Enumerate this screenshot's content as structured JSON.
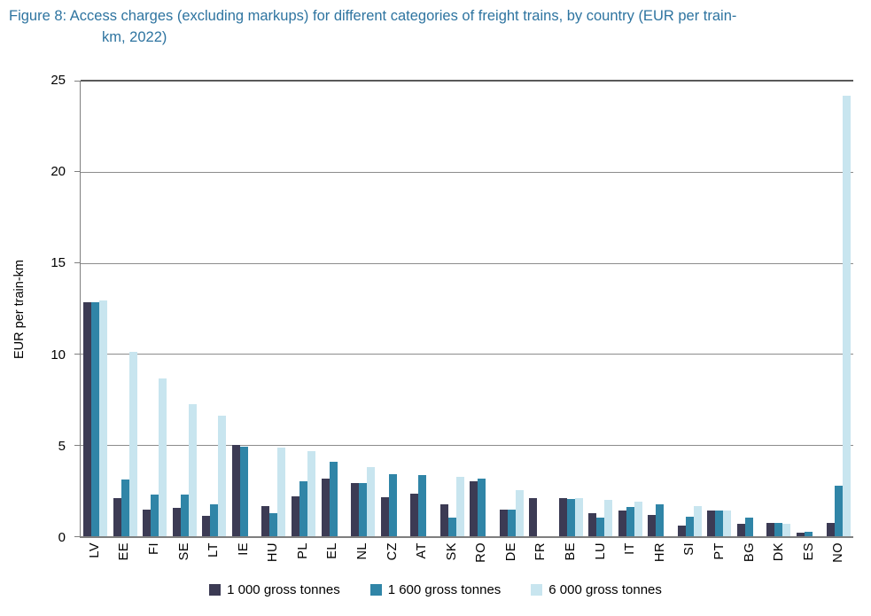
{
  "title": {
    "line1": "Figure 8: Access charges (excluding markups) for different categories of freight trains, by country (EUR per train-",
    "line2": "km, 2022)"
  },
  "colors": {
    "title_text": "#2e74a0",
    "series_1000": "#3c3b54",
    "series_1600": "#3085a7",
    "series_6000": "#c8e5ef",
    "gridline": "#8c8c8c",
    "axis": "#7f7f7f"
  },
  "chart_data": {
    "type": "bar",
    "title": "Figure 8: Access charges (excluding markups) for different categories of freight trains, by country (EUR per train-km, 2022)",
    "xlabel": "",
    "ylabel": "EUR per train-km",
    "ylim": [
      0,
      25
    ],
    "yticks": [
      0,
      5,
      10,
      15,
      20,
      25
    ],
    "grid": true,
    "legend_position": "bottom",
    "categories": [
      "LV",
      "EE",
      "FI",
      "SE",
      "LT",
      "IE",
      "HU",
      "PL",
      "EL",
      "NL",
      "CZ",
      "AT",
      "SK",
      "RO",
      "DE",
      "FR",
      "BE",
      "LU",
      "IT",
      "HR",
      "SI",
      "PT",
      "BG",
      "DK",
      "ES",
      "NO"
    ],
    "series": [
      {
        "name": "1 000 gross tonnes",
        "color": "#3c3b54",
        "values": [
          12.85,
          2.1,
          1.45,
          1.55,
          1.1,
          5.0,
          1.65,
          2.2,
          3.15,
          2.9,
          2.15,
          2.35,
          1.75,
          3.0,
          1.45,
          2.1,
          2.1,
          1.25,
          1.4,
          1.15,
          0.6,
          1.4,
          0.7,
          0.75,
          0.2,
          0.75
        ]
      },
      {
        "name": "1 600 gross tonnes",
        "color": "#3085a7",
        "values": [
          12.85,
          3.1,
          2.3,
          2.3,
          1.75,
          4.9,
          1.25,
          3.0,
          4.1,
          2.9,
          3.4,
          3.35,
          1.0,
          3.15,
          1.45,
          null,
          2.05,
          1.0,
          1.6,
          1.75,
          1.05,
          1.4,
          1.0,
          0.75,
          0.25,
          2.75
        ]
      },
      {
        "name": "6 000 gross tonnes",
        "color": "#c8e5ef",
        "values": [
          12.95,
          10.1,
          8.65,
          7.25,
          6.6,
          null,
          4.85,
          4.65,
          null,
          3.8,
          null,
          null,
          3.25,
          null,
          2.55,
          null,
          2.1,
          2.0,
          1.9,
          null,
          1.65,
          1.4,
          null,
          0.7,
          null,
          24.15
        ]
      }
    ]
  }
}
